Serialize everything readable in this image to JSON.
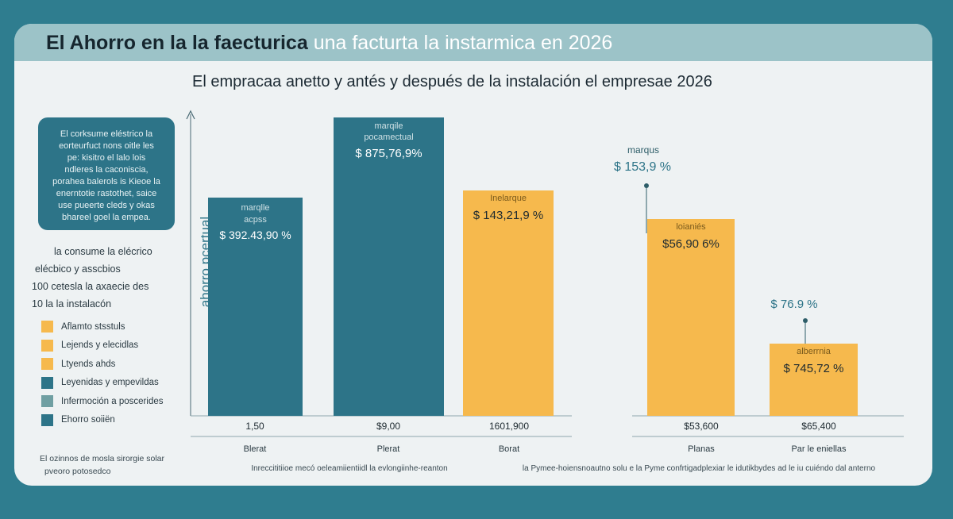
{
  "header": {
    "title_part1": "El Ahorro en la la faecturica",
    "title_part2": "una facturta la instarmica en 2026"
  },
  "colors": {
    "page_bg": "#2f7d8f",
    "card_bg": "#eef2f3",
    "banner_bg": "#9cc3c8",
    "teal": "#2d7488",
    "orange": "#f6b94d",
    "grey_teal": "#6f9fa2"
  },
  "note_box": {
    "lines": [
      "El corksume eléstrico la",
      "eorteurfuct nons oitle les",
      "pe: kisitro el lalo lois",
      "ndleres la caconiscia,",
      "porahea balerols is Kieoe la",
      "enerntotie rastothet, saice",
      "use pueerte cleds y okas",
      "bhareel goel la empea."
    ]
  },
  "side_text": {
    "lines": [
      "la consume la elécrico",
      "elécbico y asscbios",
      "100 cetesla la axaecie des",
      "10 la la instalacón"
    ]
  },
  "legend": {
    "items": [
      {
        "label": "Aflamto stsstuls",
        "color": "#f6b94d"
      },
      {
        "label": "Lejends y elecidlas",
        "color": "#f6b94d"
      },
      {
        "label": "Ltyends ahds",
        "color": "#f6b94d"
      },
      {
        "label": "Leyenidas y empevildas",
        "color": "#2d7488"
      },
      {
        "label": "Infermoción a poscerides",
        "color": "#6f9fa2"
      },
      {
        "label": "Ehorro soiiёn",
        "color": "#2d7488"
      }
    ]
  },
  "footnote": {
    "lines": [
      "El ozinnos de mosla sirorgie solar",
      "pveoro potosedco"
    ]
  },
  "chart_data": {
    "type": "bar",
    "title": "El empracaa anetto y antés y después de la instalación el empresae 2026",
    "ylabel": "ahorro pcertual",
    "values": [
      392.439,
      875.769,
      143219,
      153.9,
      56906,
      76.9,
      74572
    ],
    "groups": [
      {
        "caption": "Inreccititiioe mecó oeleamiientiidl la evlongiinhe-reanton",
        "bars": [
          {
            "category": "Blerat",
            "value_text": "1,50",
            "label_title": "marqlle acpss",
            "label_value": "$ 392.43,90 %",
            "color": "#2d7488"
          },
          {
            "category": "Plerat",
            "value_text": "$9,00",
            "label_title": "marqile pocamectual",
            "label_value": "$ 875,76,9%",
            "color": "#2d7488"
          },
          {
            "category": "Borat",
            "value_text": "1601,900",
            "label_title": "Inelarque",
            "label_value": "$ 143,21,9 %",
            "color": "#f6b94d"
          }
        ]
      },
      {
        "caption": "la Pymee-hoiensnoautno solu e la Pyme confrtigadplexiar le idutikbydes ad le iu cuiéndo dal anterno",
        "bars": [
          {
            "category": "Planas",
            "value_text": "$53,600",
            "label_title": "loianiés",
            "label_value": "$56,90 6%",
            "color": "#f6b94d",
            "callout_title": "marqus",
            "callout_value": "$ 153,9 %"
          },
          {
            "category": "Par le eniellas",
            "value_text": "$65,400",
            "label_title": "alberrnia",
            "label_value": "$ 745,72 %",
            "color": "#f6b94d",
            "callout_value": "$ 76.9 %"
          }
        ]
      }
    ]
  }
}
